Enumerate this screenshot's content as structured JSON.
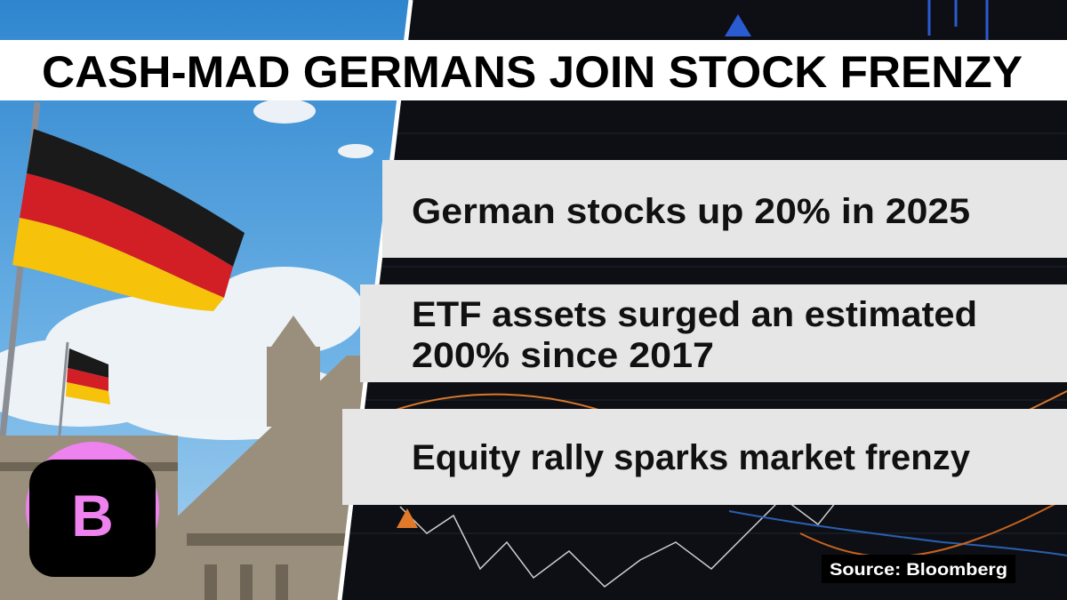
{
  "header": {
    "title": "CASH-MAD GERMANS JOIN STOCK FRENZY"
  },
  "bullets": [
    [
      "German stocks up 20% in 2025"
    ],
    [
      "ETF assets surged an estimated",
      "200% since 2017"
    ],
    [
      "Equity rally sparks market frenzy"
    ]
  ],
  "source": "Source: Bloomberg",
  "logo": "B"
}
